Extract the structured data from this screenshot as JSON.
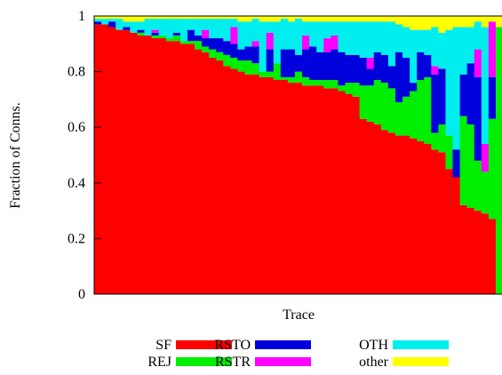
{
  "chart_data": {
    "type": "bar",
    "stacked": true,
    "title": "",
    "xlabel": "Trace",
    "ylabel": "Fraction of Conns.",
    "ylim": [
      0,
      1
    ],
    "yticks": [
      "0",
      "0.2",
      "0.4",
      "0.6",
      "0.8",
      "1"
    ],
    "legend_position": "bottom",
    "series_order": [
      "SF",
      "REJ",
      "RSTO",
      "RSTR",
      "OTH",
      "other"
    ],
    "legend": [
      {
        "key": "SF",
        "label": "SF"
      },
      {
        "key": "REJ",
        "label": "REJ"
      },
      {
        "key": "RSTO",
        "label": "RSTO"
      },
      {
        "key": "RSTR",
        "label": "RSTR"
      },
      {
        "key": "OTH",
        "label": "OTH"
      },
      {
        "key": "other",
        "label": "other"
      }
    ],
    "colors": {
      "SF": "#ff0000",
      "REJ": "#00ee00",
      "RSTO": "#0000dd",
      "RSTR": "#ff00ff",
      "OTH": "#00eeee",
      "other": "#ffff00"
    },
    "series": [
      {
        "key": "SF",
        "values": [
          0.97,
          0.97,
          0.96,
          0.95,
          0.95,
          0.94,
          0.93,
          0.93,
          0.92,
          0.92,
          0.91,
          0.91,
          0.9,
          0.9,
          0.88,
          0.87,
          0.85,
          0.84,
          0.82,
          0.81,
          0.8,
          0.79,
          0.79,
          0.78,
          0.78,
          0.77,
          0.77,
          0.76,
          0.76,
          0.75,
          0.75,
          0.75,
          0.74,
          0.74,
          0.73,
          0.72,
          0.71,
          0.63,
          0.62,
          0.61,
          0.59,
          0.58,
          0.57,
          0.57,
          0.56,
          0.55,
          0.54,
          0.52,
          0.51,
          0.45,
          0.42,
          0.32,
          0.31,
          0.3,
          0.29,
          0.27,
          0.0
        ]
      },
      {
        "key": "REJ",
        "values": [
          0.0,
          0.0,
          0.0,
          0.0,
          0.0,
          0.0,
          0.01,
          0.0,
          0.01,
          0.01,
          0.01,
          0.02,
          0.01,
          0.01,
          0.03,
          0.02,
          0.03,
          0.03,
          0.04,
          0.04,
          0.04,
          0.05,
          0.04,
          0.02,
          0.02,
          0.06,
          0.01,
          0.02,
          0.04,
          0.03,
          0.02,
          0.02,
          0.03,
          0.03,
          0.02,
          0.04,
          0.05,
          0.12,
          0.13,
          0.16,
          0.17,
          0.16,
          0.12,
          0.14,
          0.17,
          0.22,
          0.24,
          0.06,
          0.1,
          0.12,
          0.0,
          0.32,
          0.3,
          0.18,
          0.15,
          0.36,
          0.96
        ]
      },
      {
        "key": "RSTO",
        "values": [
          0.01,
          0.0,
          0.02,
          0.0,
          0.01,
          0.0,
          0.01,
          0.0,
          0.01,
          0.0,
          0.0,
          0.01,
          0.0,
          0.04,
          0.02,
          0.03,
          0.04,
          0.05,
          0.05,
          0.05,
          0.04,
          0.05,
          0.06,
          0.0,
          0.08,
          0.0,
          0.1,
          0.1,
          0.06,
          0.1,
          0.12,
          0.1,
          0.1,
          0.11,
          0.12,
          0.1,
          0.1,
          0.1,
          0.06,
          0.1,
          0.1,
          0.08,
          0.18,
          0.14,
          0.03,
          0.1,
          0.08,
          0.21,
          0.2,
          0.0,
          0.1,
          0.15,
          0.22,
          0.3,
          0.0,
          0.15,
          0.0
        ]
      },
      {
        "key": "RSTR",
        "values": [
          0.0,
          0.0,
          0.0,
          0.0,
          0.0,
          0.0,
          0.0,
          0.0,
          0.01,
          0.0,
          0.0,
          0.0,
          0.0,
          0.0,
          0.0,
          0.03,
          0.0,
          0.0,
          0.0,
          0.06,
          0.0,
          0.0,
          0.02,
          0.0,
          0.06,
          0.0,
          0.0,
          0.0,
          0.0,
          0.05,
          0.0,
          0.0,
          0.05,
          0.05,
          0.0,
          0.0,
          0.0,
          0.0,
          0.04,
          0.0,
          0.0,
          0.0,
          0.0,
          0.0,
          0.0,
          0.0,
          0.0,
          0.03,
          0.0,
          0.0,
          0.0,
          0.0,
          0.0,
          0.1,
          0.1,
          0.2,
          0.0
        ]
      },
      {
        "key": "OTH",
        "values": [
          0.01,
          0.02,
          0.01,
          0.04,
          0.02,
          0.04,
          0.03,
          0.06,
          0.04,
          0.06,
          0.07,
          0.05,
          0.08,
          0.04,
          0.06,
          0.04,
          0.07,
          0.07,
          0.08,
          0.03,
          0.1,
          0.09,
          0.08,
          0.18,
          0.04,
          0.15,
          0.11,
          0.1,
          0.13,
          0.05,
          0.09,
          0.11,
          0.06,
          0.05,
          0.11,
          0.12,
          0.12,
          0.13,
          0.13,
          0.11,
          0.12,
          0.16,
          0.1,
          0.11,
          0.19,
          0.08,
          0.09,
          0.14,
          0.13,
          0.38,
          0.44,
          0.17,
          0.13,
          0.1,
          0.42,
          0.0,
          0.0
        ]
      },
      {
        "key": "other",
        "values": [
          0.01,
          0.01,
          0.01,
          0.01,
          0.02,
          0.02,
          0.02,
          0.01,
          0.01,
          0.01,
          0.01,
          0.01,
          0.01,
          0.01,
          0.01,
          0.01,
          0.01,
          0.01,
          0.01,
          0.01,
          0.02,
          0.02,
          0.01,
          0.02,
          0.02,
          0.02,
          0.01,
          0.02,
          0.01,
          0.02,
          0.02,
          0.02,
          0.02,
          0.02,
          0.02,
          0.02,
          0.02,
          0.02,
          0.02,
          0.02,
          0.02,
          0.02,
          0.03,
          0.04,
          0.05,
          0.05,
          0.05,
          0.04,
          0.06,
          0.05,
          0.04,
          0.04,
          0.04,
          0.02,
          0.04,
          0.02,
          0.04
        ]
      }
    ]
  }
}
